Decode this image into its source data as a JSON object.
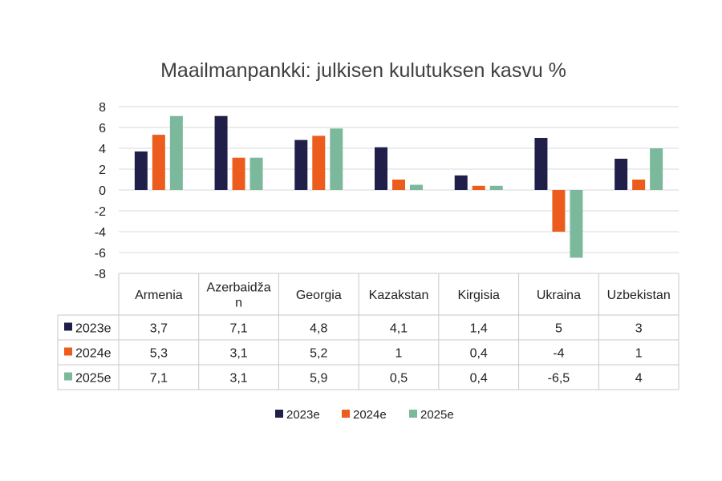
{
  "chart_data": {
    "type": "bar",
    "title": "Maailmanpankki: julkisen kulutuksen kasvu %",
    "categories": [
      "Armenia",
      "Azerbaidžan",
      "Georgia",
      "Kazakstan",
      "Kirgisia",
      "Ukraina",
      "Uzbekistan"
    ],
    "category_lines": [
      [
        "Armenia"
      ],
      [
        "Azerbaidža",
        "n"
      ],
      [
        "Georgia"
      ],
      [
        "Kazakstan"
      ],
      [
        "Kirgisia"
      ],
      [
        "Ukraina"
      ],
      [
        "Uzbekistan"
      ]
    ],
    "series": [
      {
        "name": "2023e",
        "color": "#1f1f4a",
        "values": [
          3.7,
          7.1,
          4.8,
          4.1,
          1.4,
          5,
          3
        ],
        "labels": [
          "3,7",
          "7,1",
          "4,8",
          "4,1",
          "1,4",
          "5",
          "3"
        ]
      },
      {
        "name": "2024e",
        "color": "#ec5d1d",
        "values": [
          5.3,
          3.1,
          5.2,
          1,
          0.4,
          -4,
          1
        ],
        "labels": [
          "5,3",
          "3,1",
          "5,2",
          "1",
          "0,4",
          "-4",
          "1"
        ]
      },
      {
        "name": "2025e",
        "color": "#7cb99c",
        "values": [
          7.1,
          3.1,
          5.9,
          0.5,
          0.4,
          -6.5,
          4
        ],
        "labels": [
          "7,1",
          "3,1",
          "5,9",
          "0,5",
          "0,4",
          "-6,5",
          "4"
        ]
      }
    ],
    "ylim": [
      -8,
      8
    ],
    "yticks": [
      8,
      6,
      4,
      2,
      0,
      -2,
      -4,
      -6,
      -8
    ],
    "grid": true,
    "legend": "bottom",
    "data_table": true
  }
}
